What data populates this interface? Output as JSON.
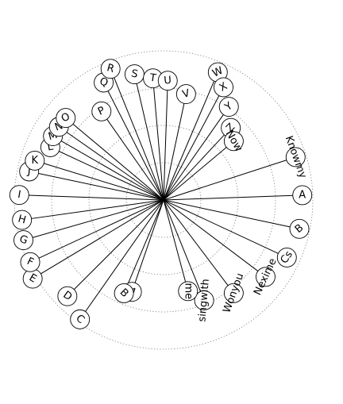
{
  "diagram": {
    "type": "radial-label-wheel",
    "rings": 4,
    "ring_style": "dotted",
    "spoke_color": "#000000",
    "badge_fill": "#ffffff",
    "badge_stroke": "#000000",
    "labels": [
      {
        "text": "Q",
        "angle": 117,
        "radius": 0.95,
        "rotation": 20
      },
      {
        "text": "R",
        "angle": 112,
        "radius": 1.02,
        "rotation": 15
      },
      {
        "text": "S",
        "angle": 103,
        "radius": 0.93,
        "rotation": 12
      },
      {
        "text": "T",
        "angle": 95,
        "radius": 0.88,
        "rotation": 8
      },
      {
        "text": "U",
        "angle": 88,
        "radius": 0.86,
        "rotation": -5
      },
      {
        "text": "V",
        "angle": 78,
        "radius": 0.78,
        "rotation": -15
      },
      {
        "text": "W",
        "angle": 67,
        "radius": 1.0,
        "rotation": -25
      },
      {
        "text": "X",
        "angle": 62,
        "radius": 0.92,
        "rotation": -30
      },
      {
        "text": "Y",
        "angle": 55,
        "radius": 0.82,
        "rotation": -35
      },
      {
        "text": "Z",
        "angle": 47,
        "radius": 0.71,
        "rotation": -45
      },
      {
        "text": "Now",
        "angle": 40,
        "radius": 0.66,
        "rotation": 60
      },
      {
        "text": "Knowmy",
        "angle": 18,
        "radius": 1.0,
        "rotation": 70
      },
      {
        "text": "A",
        "angle": 2,
        "radius": 1.0,
        "rotation": 0
      },
      {
        "text": "B",
        "angle": -12,
        "radius": 1.0,
        "rotation": -40
      },
      {
        "text": "Cs",
        "angle": -25,
        "radius": 0.98,
        "rotation": -55
      },
      {
        "text": "Nexime",
        "angle": -37,
        "radius": 0.92,
        "rotation": -65
      },
      {
        "text": "Wonyou",
        "angle": -53,
        "radius": 0.84,
        "rotation": -70
      },
      {
        "text": "singwith",
        "angle": -68,
        "radius": 0.78,
        "rotation": -85
      },
      {
        "text": "me",
        "angle": -75,
        "radius": 0.68,
        "rotation": 90
      },
      {
        "text": "A",
        "angle": -109,
        "radius": 0.7,
        "rotation": 40
      },
      {
        "text": "B",
        "angle": -113,
        "radius": 0.73,
        "rotation": 45
      },
      {
        "text": "C",
        "angle": -125,
        "radius": 1.05,
        "rotation": 40
      },
      {
        "text": "D",
        "angle": -135,
        "radius": 0.98,
        "rotation": 35
      },
      {
        "text": "E",
        "angle": -149,
        "radius": 1.1,
        "rotation": 30
      },
      {
        "text": "F",
        "angle": -155,
        "radius": 1.06,
        "rotation": 25
      },
      {
        "text": "G",
        "angle": -164,
        "radius": 1.05,
        "rotation": 20
      },
      {
        "text": "H",
        "angle": -172,
        "radius": 1.03,
        "rotation": 15
      },
      {
        "text": "I",
        "angle": 178,
        "radius": 1.04,
        "rotation": 10
      },
      {
        "text": "J",
        "angle": 168,
        "radius": 0.99,
        "rotation": 5
      },
      {
        "text": "K",
        "angle": 163,
        "radius": 0.97,
        "rotation": 0
      },
      {
        "text": "L",
        "angle": 155,
        "radius": 0.9,
        "rotation": -10
      },
      {
        "text": "M",
        "angle": 150,
        "radius": 0.92,
        "rotation": -15
      },
      {
        "text": "N",
        "angle": 145,
        "radius": 0.92,
        "rotation": -20
      },
      {
        "text": "O",
        "angle": 140,
        "radius": 0.92,
        "rotation": -25
      },
      {
        "text": "P",
        "angle": 125,
        "radius": 0.78,
        "rotation": -25
      }
    ]
  }
}
